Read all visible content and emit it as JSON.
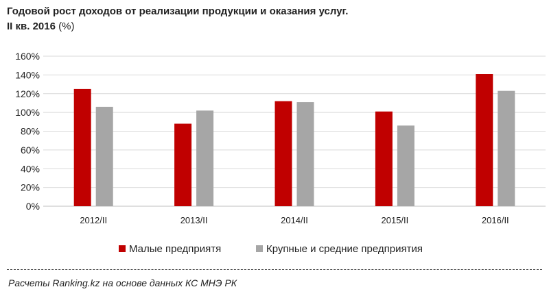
{
  "title": {
    "line1": "Годовой рост доходов от реализации  продукции и оказания  услуг.",
    "line2": "II кв.  2016",
    "unit": "(%)"
  },
  "chart_data": {
    "type": "bar",
    "categories": [
      "2012/II",
      "2013/II",
      "2014/II",
      "2015/II",
      "2016/II"
    ],
    "series": [
      {
        "name": "Малые предприятя",
        "color": "#c00000",
        "values": [
          125,
          88,
          112,
          101,
          141
        ]
      },
      {
        "name": "Крупные и средние предприятия",
        "color": "#a6a6a6",
        "values": [
          106,
          102,
          111,
          86,
          123
        ]
      }
    ],
    "ylim": [
      0,
      160
    ],
    "yticks": [
      "0%",
      "20%",
      "40%",
      "60%",
      "80%",
      "100%",
      "120%",
      "140%",
      "160%"
    ],
    "grid": true,
    "legend": "bottom"
  },
  "source": "Расчеты Ranking.kz на основе данных КС МНЭ РК"
}
